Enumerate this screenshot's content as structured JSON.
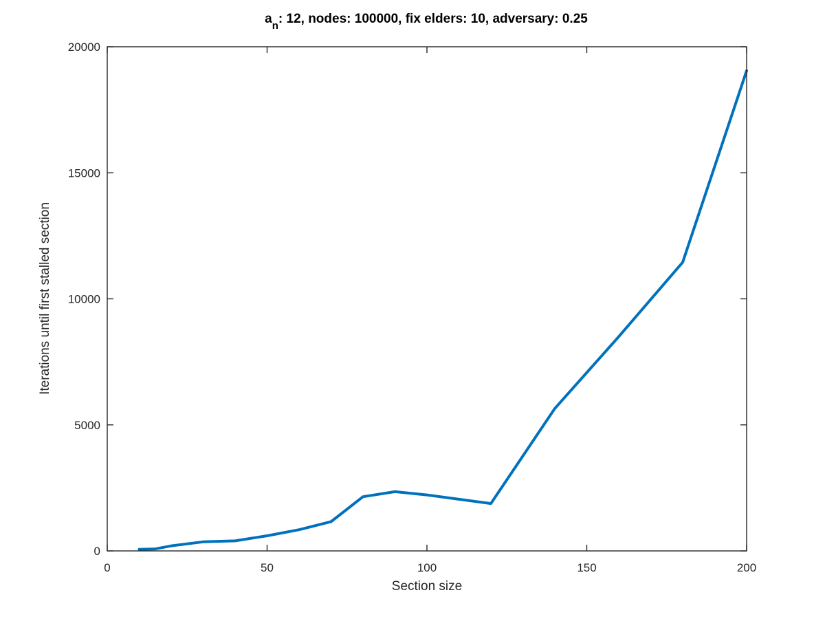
{
  "chart_data": {
    "type": "line",
    "title": {
      "base": "a",
      "subscript": "n",
      "rest": ": 12, nodes: 100000, fix elders: 10, adversary: 0.25"
    },
    "xlabel": "Section size",
    "ylabel": "Iterations until first stalled section",
    "xlim": [
      0,
      200
    ],
    "ylim": [
      0,
      20000
    ],
    "xticks": [
      0,
      50,
      100,
      150,
      200
    ],
    "yticks": [
      0,
      5000,
      10000,
      15000,
      20000
    ],
    "grid": false,
    "color": "#0072BD",
    "series": [
      {
        "x": [
          10,
          15,
          20,
          30,
          40,
          50,
          60,
          70,
          80,
          90,
          100,
          120,
          140,
          160,
          180,
          200
        ],
        "y": [
          60,
          80,
          200,
          360,
          400,
          600,
          840,
          1160,
          2150,
          2350,
          2220,
          1880,
          5650,
          8500,
          11450,
          19050
        ]
      }
    ]
  }
}
